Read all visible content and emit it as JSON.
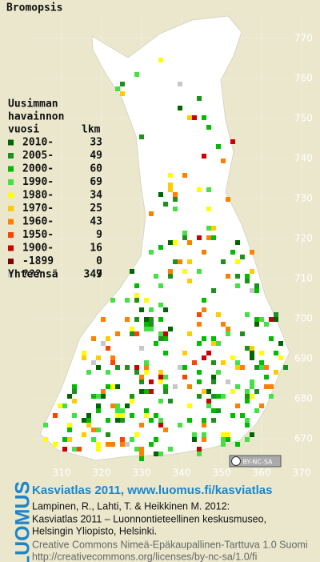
{
  "title": "Bromopsis",
  "legend": {
    "heading": [
      "Uusimman",
      "havainnon",
      "vuosi"
    ],
    "count_heading": "lkm",
    "rows": [
      {
        "label": "2010-",
        "count": 33,
        "color": "#006400"
      },
      {
        "label": "2005-",
        "count": 49,
        "color": "#1f8f1f"
      },
      {
        "label": "2000-",
        "count": 60,
        "color": "#00bb00"
      },
      {
        "label": "1990-",
        "count": 69,
        "color": "#44e044"
      },
      {
        "label": "1980-",
        "count": 34,
        "color": "#ffff00"
      },
      {
        "label": "1970-",
        "count": 25,
        "color": "#ffcc00"
      },
      {
        "label": "1960-",
        "count": 43,
        "color": "#ff8000"
      },
      {
        "label": "1950-",
        "count": 9,
        "color": "#ff4400"
      },
      {
        "label": "1900-",
        "count": 16,
        "color": "#cc0000"
      },
      {
        "label": "-1899",
        "count": 0,
        "color": "#800000"
      },
      {
        "label": "???",
        "count": 9,
        "color": "#c8c8c8"
      }
    ],
    "total_label": "Yhteensä",
    "total": 347
  },
  "grid": {
    "north": [
      770,
      760,
      750,
      740,
      730,
      720,
      710,
      700,
      690,
      680,
      670
    ],
    "east": [
      310,
      320,
      330,
      340,
      350,
      360,
      370
    ]
  },
  "footer": {
    "badge": "BY-NC-SA",
    "logo": "LUOMUS",
    "site": "Kasviatlas 2011, www.luomus.fi/kasviatlas",
    "citation": [
      "Lampinen, R., Lahti, T. & Heikkinen M. 2012:",
      "Kasviatlas 2011 – Luonnontieteellinen keskusmuseo,",
      "Helsingin Yliopisto, Helsinki."
    ],
    "license": [
      "Creative Commons Nimeä-Epäkaupallinen-Tarttuva 1.0 Suomi",
      "http://creativecommons.org/licenses/by-nc-sa/1.0/fi"
    ]
  }
}
